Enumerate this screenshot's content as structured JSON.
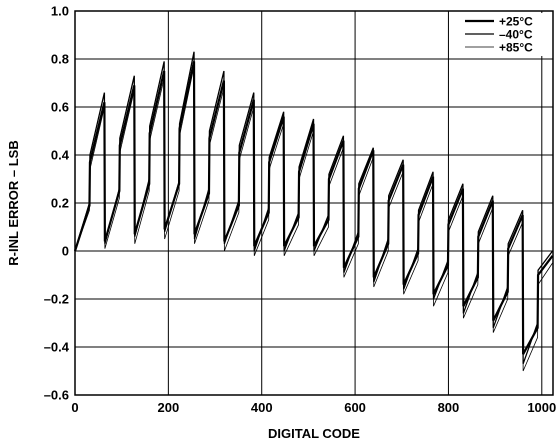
{
  "chart_data": {
    "type": "line",
    "title": "",
    "xlabel": "DIGITAL CODE",
    "ylabel": "R-INL ERROR – LSB",
    "xlim": [
      0,
      1024
    ],
    "ylim": [
      -0.6,
      1.0
    ],
    "xticks": [
      0,
      200,
      400,
      600,
      800,
      1000
    ],
    "xtick_labels": [
      "0",
      "200",
      "400",
      "600",
      "800",
      "1000"
    ],
    "yticks": [
      1.0,
      0.8,
      0.6,
      0.4,
      0.2,
      0,
      -0.2,
      -0.4,
      -0.6
    ],
    "ytick_labels": [
      "1.0",
      "0.8",
      "0.6",
      "0.4",
      "0.2",
      "0",
      "–0.2",
      "–0.4",
      "–0.6"
    ],
    "grid": true,
    "legend_position": "top-right",
    "series": [
      {
        "name": "+25°C",
        "line_width": "thick",
        "x": [
          0,
          31,
          32,
          63,
          64,
          95,
          96,
          127,
          128,
          159,
          160,
          191,
          192,
          223,
          224,
          255,
          256,
          287,
          288,
          319,
          320,
          351,
          352,
          383,
          384,
          415,
          416,
          447,
          448,
          479,
          480,
          511,
          512,
          543,
          544,
          575,
          576,
          607,
          608,
          639,
          640,
          671,
          672,
          703,
          704,
          735,
          736,
          767,
          768,
          799,
          800,
          831,
          832,
          863,
          864,
          895,
          896,
          927,
          928,
          959,
          960,
          991,
          992,
          1023
        ],
        "y": [
          0,
          0.19,
          0.37,
          0.62,
          0.04,
          0.25,
          0.44,
          0.69,
          0.07,
          0.28,
          0.49,
          0.75,
          0.09,
          0.28,
          0.51,
          0.79,
          0.07,
          0.24,
          0.47,
          0.71,
          0.04,
          0.19,
          0.41,
          0.63,
          0.02,
          0.16,
          0.37,
          0.56,
          0.02,
          0.14,
          0.33,
          0.53,
          0.02,
          0.13,
          0.3,
          0.46,
          -0.07,
          0.06,
          0.26,
          0.42,
          -0.11,
          0.03,
          0.21,
          0.36,
          -0.14,
          -0.01,
          0.15,
          0.31,
          -0.18,
          -0.06,
          0.11,
          0.26,
          -0.23,
          -0.11,
          0.06,
          0.21,
          -0.29,
          -0.17,
          0.01,
          0.15,
          -0.43,
          -0.32,
          -0.1,
          -0.02
        ]
      },
      {
        "name": "–40°C",
        "line_width": "medium",
        "x": [
          0,
          31,
          32,
          63,
          64,
          95,
          96,
          127,
          128,
          159,
          160,
          191,
          192,
          223,
          224,
          255,
          256,
          287,
          288,
          319,
          320,
          351,
          352,
          383,
          384,
          415,
          416,
          447,
          448,
          479,
          480,
          511,
          512,
          543,
          544,
          575,
          576,
          607,
          608,
          639,
          640,
          671,
          672,
          703,
          704,
          735,
          736,
          767,
          768,
          799,
          800,
          831,
          832,
          863,
          864,
          895,
          896,
          927,
          928,
          959,
          960,
          991,
          992,
          1023
        ],
        "y": [
          0,
          0.2,
          0.4,
          0.66,
          0.03,
          0.26,
          0.47,
          0.73,
          0.06,
          0.3,
          0.52,
          0.79,
          0.08,
          0.29,
          0.53,
          0.83,
          0.05,
          0.26,
          0.5,
          0.75,
          0.03,
          0.21,
          0.44,
          0.66,
          0.0,
          0.18,
          0.39,
          0.58,
          0.0,
          0.16,
          0.35,
          0.55,
          0.0,
          0.15,
          0.32,
          0.48,
          -0.09,
          0.08,
          0.28,
          0.43,
          -0.13,
          0.05,
          0.23,
          0.38,
          -0.16,
          0.01,
          0.17,
          0.33,
          -0.2,
          -0.04,
          0.13,
          0.28,
          -0.26,
          -0.09,
          0.08,
          0.23,
          -0.32,
          -0.15,
          0.03,
          0.17,
          -0.47,
          -0.3,
          -0.08,
          0.0
        ]
      },
      {
        "name": "+85°C",
        "line_width": "thin",
        "x": [
          0,
          31,
          32,
          63,
          64,
          95,
          96,
          127,
          128,
          159,
          160,
          191,
          192,
          223,
          224,
          255,
          256,
          287,
          288,
          319,
          320,
          351,
          352,
          383,
          384,
          415,
          416,
          447,
          448,
          479,
          480,
          511,
          512,
          543,
          544,
          575,
          576,
          607,
          608,
          639,
          640,
          671,
          672,
          703,
          704,
          735,
          736,
          767,
          768,
          799,
          800,
          831,
          832,
          863,
          864,
          895,
          896,
          927,
          928,
          959,
          960,
          991,
          992,
          1023
        ],
        "y": [
          0,
          0.17,
          0.34,
          0.6,
          0.01,
          0.22,
          0.41,
          0.67,
          0.03,
          0.25,
          0.46,
          0.72,
          0.05,
          0.25,
          0.48,
          0.77,
          0.03,
          0.21,
          0.44,
          0.68,
          0.0,
          0.16,
          0.38,
          0.6,
          -0.02,
          0.13,
          0.34,
          0.53,
          -0.02,
          0.11,
          0.3,
          0.5,
          -0.02,
          0.1,
          0.27,
          0.43,
          -0.11,
          0.03,
          0.23,
          0.39,
          -0.15,
          0.0,
          0.18,
          0.33,
          -0.18,
          -0.04,
          0.12,
          0.28,
          -0.23,
          -0.09,
          0.08,
          0.23,
          -0.28,
          -0.14,
          0.03,
          0.18,
          -0.34,
          -0.2,
          -0.02,
          0.12,
          -0.5,
          -0.36,
          -0.14,
          -0.05
        ]
      }
    ]
  }
}
